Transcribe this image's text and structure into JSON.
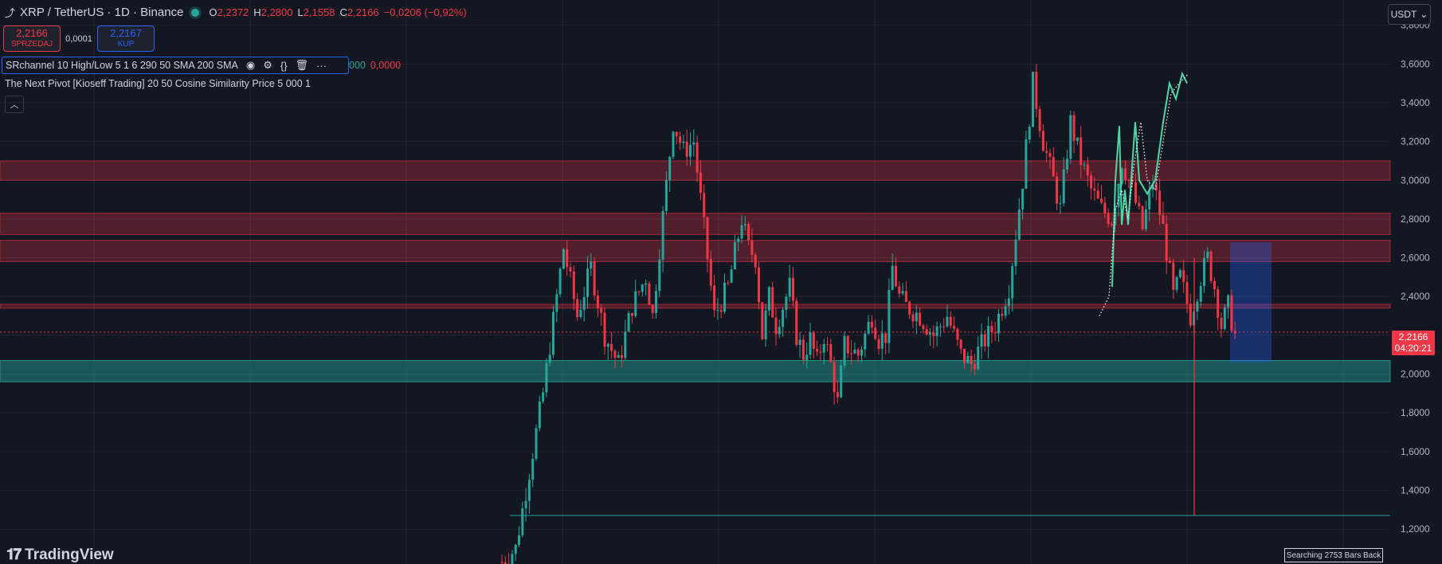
{
  "header": {
    "symbol": "XRP / TetherUS · 1D · Binance",
    "ohlc": [
      {
        "k": "O",
        "v": "2,2372"
      },
      {
        "k": "H",
        "v": "2,2800"
      },
      {
        "k": "L",
        "v": "2,1558"
      },
      {
        "k": "C",
        "v": "2,2166"
      },
      {
        "k": "",
        "v": "−0,0206 (−0,92%)"
      }
    ]
  },
  "trade": {
    "sell_price": "2,2166",
    "sell_label": "SPRZEDAJ",
    "spread": "0,0001",
    "buy_price": "2,2167",
    "buy_label": "KUP"
  },
  "indicators": {
    "row1": "SRchannel 10 High/Low 5 1 6 290 50 SMA 200 SMA",
    "row1_value_green": "000",
    "row1_value_red": "0,0000",
    "row2": "The Next Pivot [Kioseff Trading] 20 50 Cosine Similarity Price 5 000 1"
  },
  "currency": "USDT",
  "last_price": {
    "price": "2,2166",
    "countdown": "04:20:21"
  },
  "branding": "TradingView",
  "search_badge": "Searching 2753 Bars Back",
  "colors": {
    "background": "#131722",
    "up": "#26a69a",
    "down": "#f23645",
    "resistance_zone": "rgba(242,54,69,0.28)",
    "support_zone": "rgba(38,166,154,0.45)",
    "projection": "#4dd8a3"
  },
  "chart_data": {
    "type": "candlestick",
    "y_axis": {
      "ticks": [
        "3,8000",
        "3,6000",
        "3,4000",
        "3,2000",
        "3,0000",
        "2,8000",
        "2,6000",
        "2,4000",
        "2,2000",
        "2,0000",
        "1,8000",
        "1,6000",
        "1,4000",
        "1,2000"
      ],
      "tick_values": [
        3.8,
        3.6,
        3.4,
        3.2,
        3.0,
        2.8,
        2.6,
        2.4,
        2.2,
        2.0,
        1.8,
        1.6,
        1.4,
        1.2
      ],
      "range": [
        1.02,
        3.93
      ]
    },
    "zones": [
      {
        "kind": "resistance",
        "from": 3.0,
        "to": 3.1
      },
      {
        "kind": "resistance",
        "from": 2.72,
        "to": 2.83
      },
      {
        "kind": "resistance",
        "from": 2.58,
        "to": 2.69
      },
      {
        "kind": "resistance",
        "from": 2.34,
        "to": 2.36
      },
      {
        "kind": "support",
        "from": 1.96,
        "to": 2.07
      }
    ],
    "guide_line": 1.27,
    "last_close": 2.2166,
    "candle_path": [
      [
        0,
        1.03
      ],
      [
        4,
        1.1
      ],
      [
        8,
        1.5
      ],
      [
        12,
        1.9
      ],
      [
        16,
        2.4
      ],
      [
        18,
        2.65
      ],
      [
        22,
        2.3
      ],
      [
        26,
        2.55
      ],
      [
        30,
        2.2
      ],
      [
        34,
        2.05
      ],
      [
        38,
        2.35
      ],
      [
        42,
        2.5
      ],
      [
        44,
        2.3
      ],
      [
        46,
        2.65
      ],
      [
        50,
        3.3
      ],
      [
        53,
        3.15
      ],
      [
        56,
        3.2
      ],
      [
        60,
        2.6
      ],
      [
        62,
        2.3
      ],
      [
        66,
        2.45
      ],
      [
        70,
        2.8
      ],
      [
        72,
        2.65
      ],
      [
        74,
        2.6
      ],
      [
        76,
        2.2
      ],
      [
        78,
        2.4
      ],
      [
        80,
        2.25
      ],
      [
        84,
        2.45
      ],
      [
        86,
        2.2
      ],
      [
        88,
        2.1
      ],
      [
        90,
        2.18
      ],
      [
        92,
        2.06
      ],
      [
        94,
        2.2
      ],
      [
        96,
        2.05
      ],
      [
        98,
        1.85
      ],
      [
        100,
        2.15
      ],
      [
        104,
        2.1
      ],
      [
        108,
        2.3
      ],
      [
        110,
        2.18
      ],
      [
        112,
        2.2
      ],
      [
        114,
        2.55
      ],
      [
        116,
        2.4
      ],
      [
        118,
        2.35
      ],
      [
        122,
        2.3
      ],
      [
        126,
        2.2
      ],
      [
        130,
        2.3
      ],
      [
        134,
        2.1
      ],
      [
        137,
        2.05
      ],
      [
        140,
        2.15
      ],
      [
        144,
        2.25
      ],
      [
        148,
        2.45
      ],
      [
        152,
        3.0
      ],
      [
        155,
        3.5
      ],
      [
        158,
        3.2
      ],
      [
        161,
        3.0
      ],
      [
        163,
        2.85
      ],
      [
        166,
        3.3
      ],
      [
        169,
        3.1
      ],
      [
        172,
        2.95
      ],
      [
        175,
        2.85
      ],
      [
        178,
        2.8
      ],
      [
        181,
        3.1
      ],
      [
        184,
        2.95
      ],
      [
        187,
        2.75
      ],
      [
        190,
        3.0
      ],
      [
        193,
        2.75
      ],
      [
        196,
        2.4
      ],
      [
        198,
        2.5
      ],
      [
        201,
        2.3
      ],
      [
        204,
        2.5
      ],
      [
        206,
        2.6
      ],
      [
        208,
        2.45
      ],
      [
        210,
        2.25
      ],
      [
        212,
        2.35
      ],
      [
        214,
        2.2
      ]
    ],
    "projection_solid": [
      [
        1396,
        2.45
      ],
      [
        1400,
        3.0
      ],
      [
        1405,
        3.28
      ],
      [
        1408,
        2.77
      ],
      [
        1412,
        2.95
      ],
      [
        1416,
        2.77
      ],
      [
        1422,
        3.13
      ],
      [
        1425,
        3.3
      ],
      [
        1430,
        3.0
      ],
      [
        1440,
        2.93
      ],
      [
        1450,
        3.0
      ],
      [
        1460,
        3.3
      ],
      [
        1468,
        3.5
      ],
      [
        1476,
        3.42
      ],
      [
        1484,
        3.55
      ],
      [
        1490,
        3.5
      ]
    ],
    "projection_dotted": [
      [
        1380,
        2.3
      ],
      [
        1392,
        2.4
      ],
      [
        1400,
        2.85
      ],
      [
        1408,
        2.95
      ],
      [
        1416,
        2.8
      ],
      [
        1424,
        3.1
      ],
      [
        1432,
        3.3
      ],
      [
        1440,
        3.0
      ],
      [
        1450,
        2.95
      ],
      [
        1460,
        3.2
      ],
      [
        1470,
        3.45
      ],
      [
        1480,
        3.5
      ],
      [
        1492,
        3.55
      ]
    ]
  }
}
